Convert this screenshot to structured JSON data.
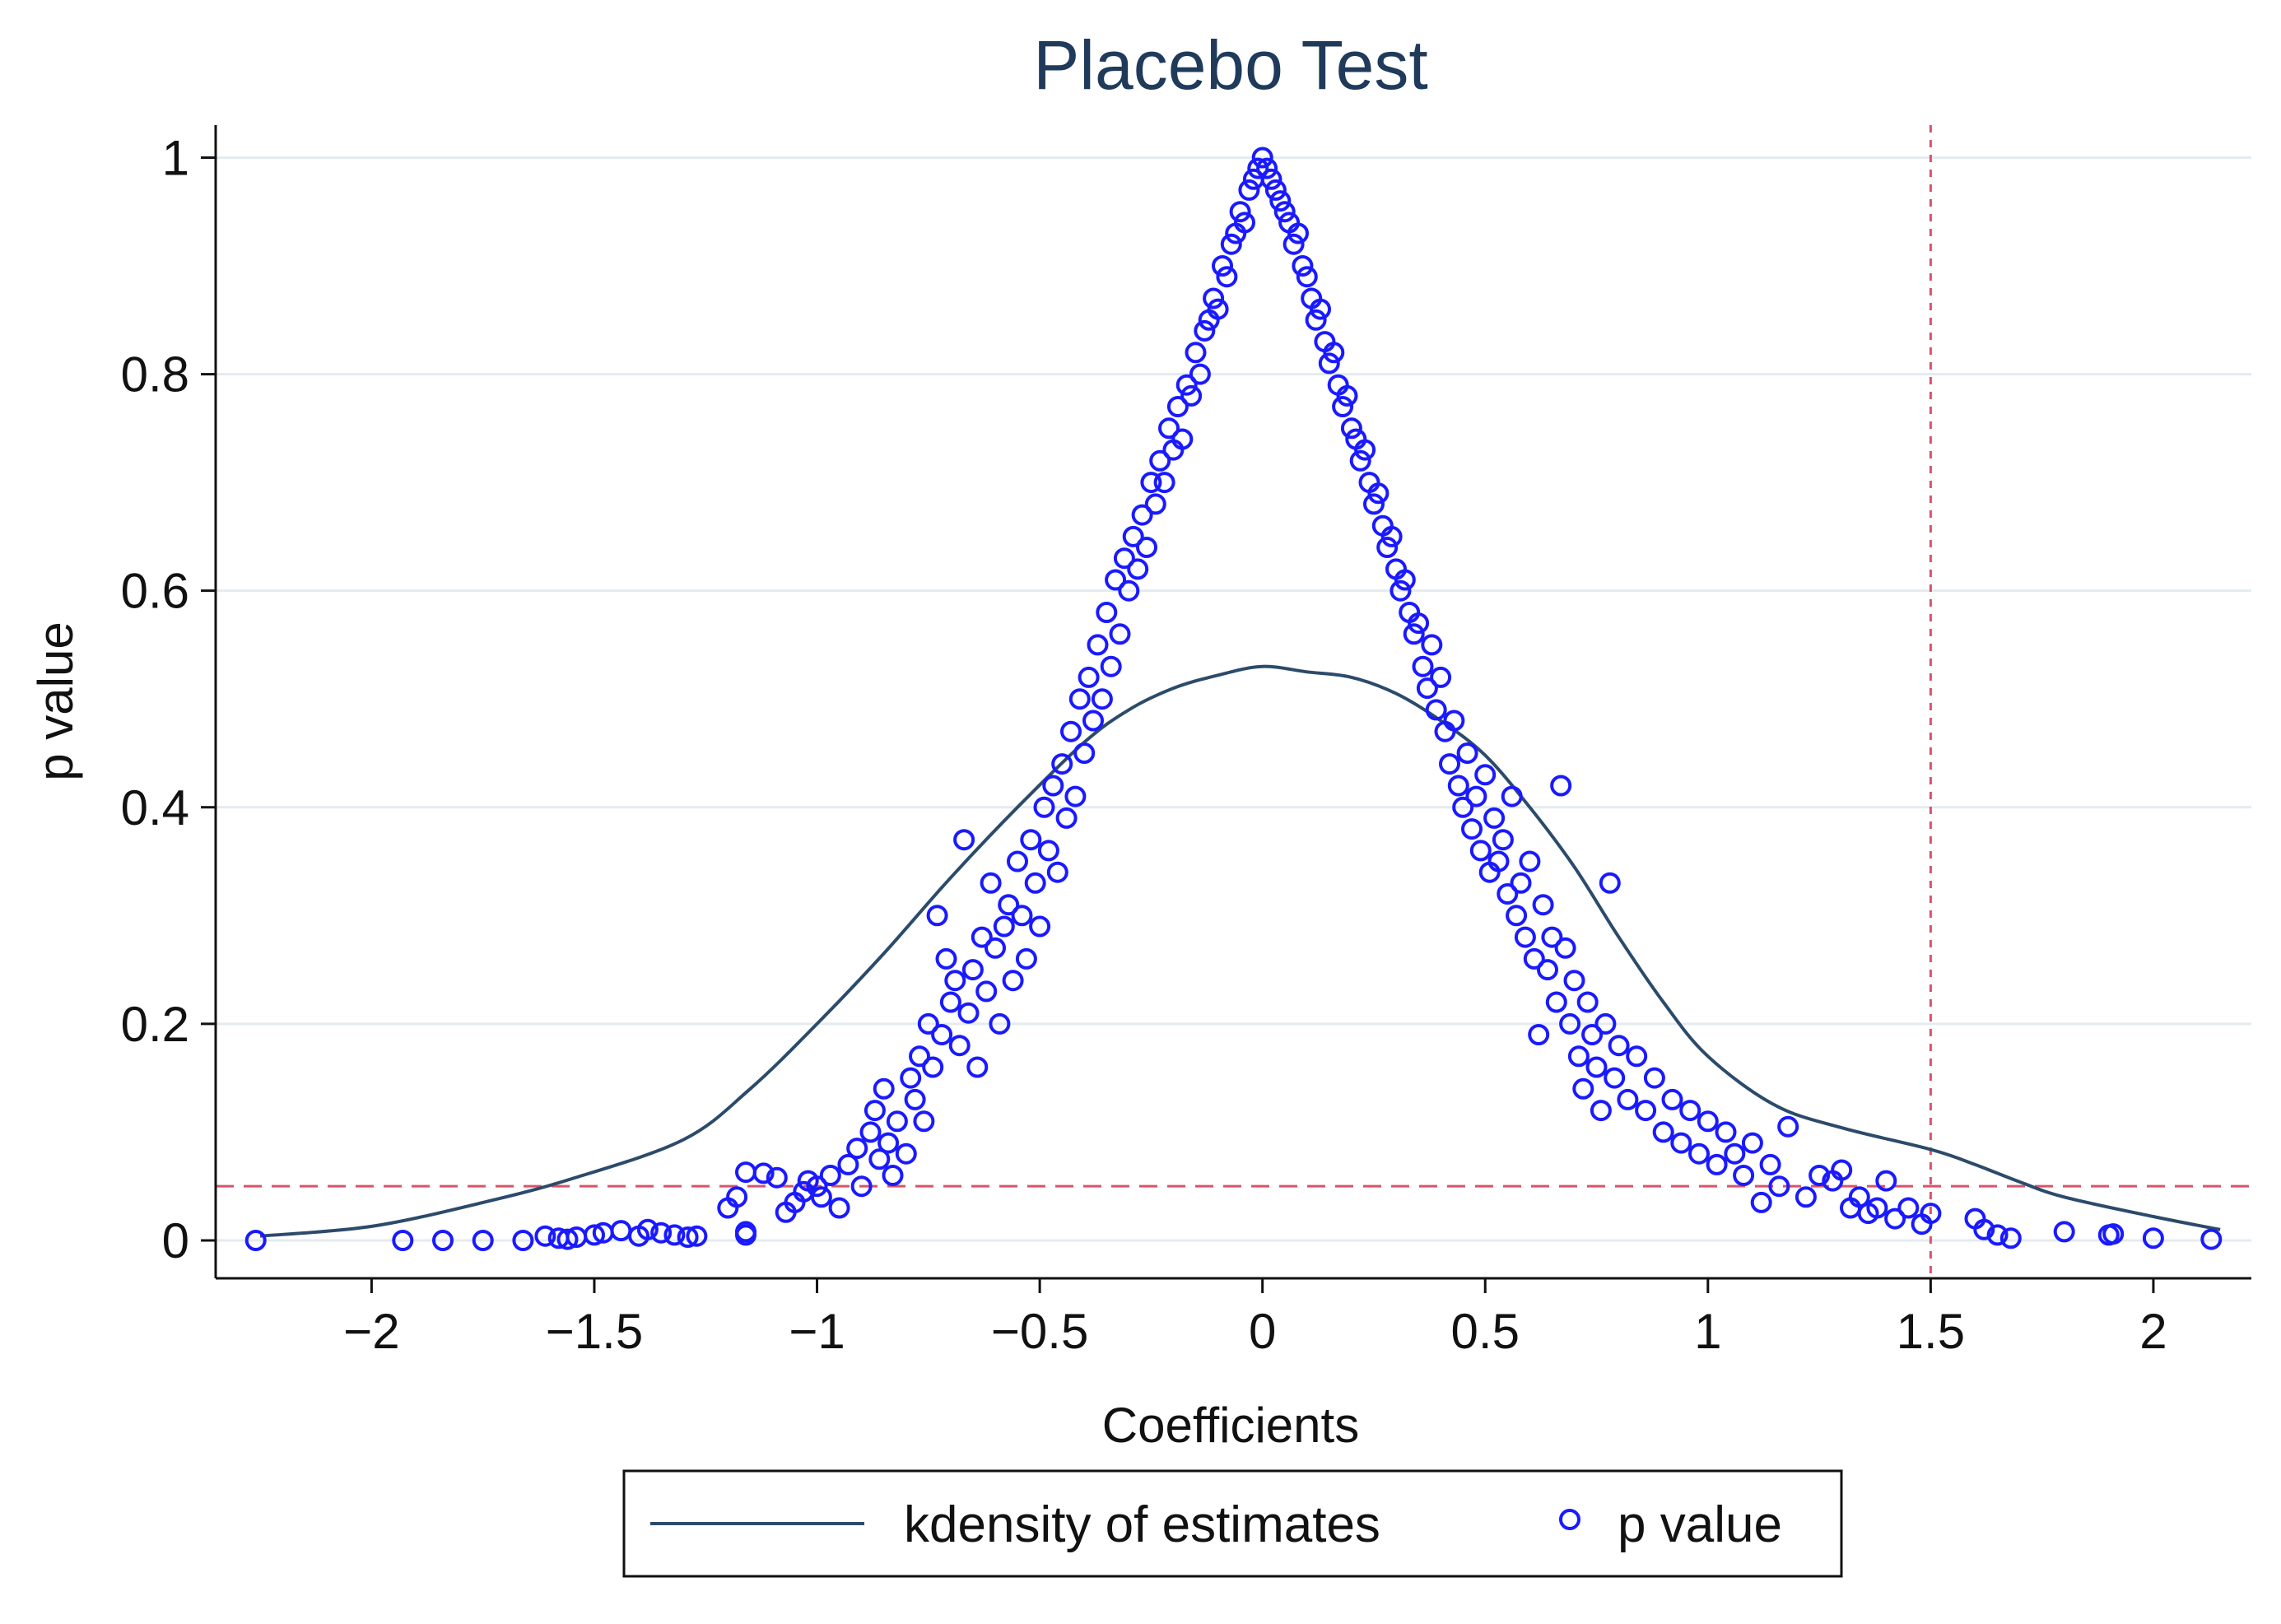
{
  "chart_data": {
    "type": "scatter",
    "title": "Placebo Test",
    "xlabel": "Coefficients",
    "ylabel": "p value",
    "xlim": [
      -2.35,
      2.22
    ],
    "ylim": [
      -0.035,
      1.03
    ],
    "x_ticks": [
      {
        "value": -2,
        "label": "−2"
      },
      {
        "value": -1.5,
        "label": "−1.5"
      },
      {
        "value": -1,
        "label": "−1"
      },
      {
        "value": -0.5,
        "label": "−0.5"
      },
      {
        "value": 0,
        "label": "0"
      },
      {
        "value": 0.5,
        "label": "0.5"
      },
      {
        "value": 1,
        "label": "1"
      },
      {
        "value": 1.5,
        "label": "1.5"
      },
      {
        "value": 2,
        "label": "2"
      }
    ],
    "y_ticks": [
      {
        "value": 0,
        "label": "0"
      },
      {
        "value": 0.2,
        "label": "0.2"
      },
      {
        "value": 0.4,
        "label": "0.4"
      },
      {
        "value": 0.6,
        "label": "0.6"
      },
      {
        "value": 0.8,
        "label": "0.8"
      },
      {
        "value": 1,
        "label": "1"
      }
    ],
    "grid": true,
    "reference_lines": [
      {
        "orientation": "horizontal",
        "value": 0.05,
        "color": "#d9536b"
      },
      {
        "orientation": "vertical",
        "value": 1.5,
        "color": "#d9536b"
      }
    ],
    "legend": {
      "placement": "bottom",
      "entries": [
        "kdensity of estimates",
        "p value"
      ]
    },
    "colors": {
      "title": "#1f3a5a",
      "kdensity_line": "#2c4b6b",
      "p_value_marker": "#1a1aff",
      "grid": "#e3ecf0",
      "reference": "#d9536b"
    },
    "series": [
      {
        "name": "kdensity of estimates",
        "kind": "line",
        "x": [
          -2.25,
          -2.0,
          -1.75,
          -1.55,
          -1.3,
          -1.15,
          -1.0,
          -0.85,
          -0.7,
          -0.55,
          -0.4,
          -0.3,
          -0.2,
          -0.1,
          0.0,
          0.1,
          0.2,
          0.3,
          0.4,
          0.5,
          0.6,
          0.7,
          0.8,
          0.9,
          1.0,
          1.15,
          1.3,
          1.5,
          1.6,
          1.7,
          1.8,
          2.0,
          2.15
        ],
        "y": [
          0.004,
          0.013,
          0.035,
          0.057,
          0.093,
          0.14,
          0.2,
          0.265,
          0.335,
          0.4,
          0.46,
          0.49,
          0.51,
          0.522,
          0.53,
          0.525,
          0.52,
          0.505,
          0.48,
          0.448,
          0.4,
          0.345,
          0.28,
          0.22,
          0.17,
          0.125,
          0.104,
          0.084,
          0.07,
          0.054,
          0.04,
          0.022,
          0.01
        ]
      },
      {
        "name": "p value",
        "kind": "scatter",
        "points": [
          [
            -2.26,
            0.0
          ],
          [
            -1.93,
            0.0
          ],
          [
            -1.84,
            0.0
          ],
          [
            -1.75,
            0.0
          ],
          [
            -1.66,
            0.0
          ],
          [
            -1.61,
            0.004
          ],
          [
            -1.58,
            0.002
          ],
          [
            -1.56,
            0.001
          ],
          [
            -1.54,
            0.003
          ],
          [
            -1.5,
            0.005
          ],
          [
            -1.48,
            0.007
          ],
          [
            -1.44,
            0.009
          ],
          [
            -1.4,
            0.004
          ],
          [
            -1.38,
            0.01
          ],
          [
            -1.35,
            0.007
          ],
          [
            -1.32,
            0.005
          ],
          [
            -1.29,
            0.003
          ],
          [
            -1.27,
            0.004
          ],
          [
            -1.16,
            0.005
          ],
          [
            -1.16,
            0.008
          ],
          [
            -1.16,
            0.063
          ],
          [
            -1.2,
            0.03
          ],
          [
            -1.18,
            0.04
          ],
          [
            -1.12,
            0.062
          ],
          [
            -1.09,
            0.058
          ],
          [
            -1.07,
            0.026
          ],
          [
            -1.05,
            0.035
          ],
          [
            -1.03,
            0.045
          ],
          [
            -1.02,
            0.055
          ],
          [
            -1.0,
            0.05
          ],
          [
            -0.99,
            0.04
          ],
          [
            -0.97,
            0.06
          ],
          [
            -0.95,
            0.03
          ],
          [
            -0.93,
            0.07
          ],
          [
            -0.91,
            0.085
          ],
          [
            -0.9,
            0.05
          ],
          [
            -0.88,
            0.1
          ],
          [
            -0.87,
            0.12
          ],
          [
            -0.86,
            0.075
          ],
          [
            -0.85,
            0.14
          ],
          [
            -0.84,
            0.09
          ],
          [
            -0.83,
            0.06
          ],
          [
            -0.82,
            0.11
          ],
          [
            -0.8,
            0.08
          ],
          [
            -0.79,
            0.15
          ],
          [
            -0.78,
            0.13
          ],
          [
            -0.77,
            0.17
          ],
          [
            -0.76,
            0.11
          ],
          [
            -0.75,
            0.2
          ],
          [
            -0.74,
            0.16
          ],
          [
            -0.73,
            0.3
          ],
          [
            -0.72,
            0.19
          ],
          [
            -0.71,
            0.26
          ],
          [
            -0.7,
            0.22
          ],
          [
            -0.69,
            0.24
          ],
          [
            -0.68,
            0.18
          ],
          [
            -0.67,
            0.37
          ],
          [
            -0.66,
            0.21
          ],
          [
            -0.65,
            0.25
          ],
          [
            -0.64,
            0.16
          ],
          [
            -0.63,
            0.28
          ],
          [
            -0.62,
            0.23
          ],
          [
            -0.61,
            0.33
          ],
          [
            -0.6,
            0.27
          ],
          [
            -0.59,
            0.2
          ],
          [
            -0.58,
            0.29
          ],
          [
            -0.57,
            0.31
          ],
          [
            -0.56,
            0.24
          ],
          [
            -0.55,
            0.35
          ],
          [
            -0.54,
            0.3
          ],
          [
            -0.53,
            0.26
          ],
          [
            -0.52,
            0.37
          ],
          [
            -0.51,
            0.33
          ],
          [
            -0.5,
            0.29
          ],
          [
            -0.49,
            0.4
          ],
          [
            -0.48,
            0.36
          ],
          [
            -0.47,
            0.42
          ],
          [
            -0.46,
            0.34
          ],
          [
            -0.45,
            0.44
          ],
          [
            -0.44,
            0.39
          ],
          [
            -0.43,
            0.47
          ],
          [
            -0.42,
            0.41
          ],
          [
            -0.41,
            0.5
          ],
          [
            -0.4,
            0.45
          ],
          [
            -0.39,
            0.52
          ],
          [
            -0.38,
            0.48
          ],
          [
            -0.37,
            0.55
          ],
          [
            -0.36,
            0.5
          ],
          [
            -0.35,
            0.58
          ],
          [
            -0.34,
            0.53
          ],
          [
            -0.33,
            0.61
          ],
          [
            -0.32,
            0.56
          ],
          [
            -0.31,
            0.63
          ],
          [
            -0.3,
            0.6
          ],
          [
            -0.29,
            0.65
          ],
          [
            -0.28,
            0.62
          ],
          [
            -0.27,
            0.67
          ],
          [
            -0.26,
            0.64
          ],
          [
            -0.25,
            0.7
          ],
          [
            -0.24,
            0.68
          ],
          [
            -0.23,
            0.72
          ],
          [
            -0.22,
            0.7
          ],
          [
            -0.21,
            0.75
          ],
          [
            -0.2,
            0.73
          ],
          [
            -0.19,
            0.77
          ],
          [
            -0.18,
            0.74
          ],
          [
            -0.17,
            0.79
          ],
          [
            -0.16,
            0.78
          ],
          [
            -0.15,
            0.82
          ],
          [
            -0.14,
            0.8
          ],
          [
            -0.13,
            0.84
          ],
          [
            -0.12,
            0.85
          ],
          [
            -0.11,
            0.87
          ],
          [
            -0.1,
            0.86
          ],
          [
            -0.09,
            0.9
          ],
          [
            -0.08,
            0.89
          ],
          [
            -0.07,
            0.92
          ],
          [
            -0.06,
            0.93
          ],
          [
            -0.05,
            0.95
          ],
          [
            -0.04,
            0.94
          ],
          [
            -0.03,
            0.97
          ],
          [
            -0.02,
            0.98
          ],
          [
            -0.01,
            0.99
          ],
          [
            0.0,
            1.0
          ],
          [
            0.01,
            0.99
          ],
          [
            0.02,
            0.98
          ],
          [
            0.03,
            0.97
          ],
          [
            0.04,
            0.96
          ],
          [
            0.05,
            0.95
          ],
          [
            0.06,
            0.94
          ],
          [
            0.07,
            0.92
          ],
          [
            0.08,
            0.93
          ],
          [
            0.09,
            0.9
          ],
          [
            0.1,
            0.89
          ],
          [
            0.11,
            0.87
          ],
          [
            0.12,
            0.85
          ],
          [
            0.13,
            0.86
          ],
          [
            0.14,
            0.83
          ],
          [
            0.15,
            0.81
          ],
          [
            0.16,
            0.82
          ],
          [
            0.17,
            0.79
          ],
          [
            0.18,
            0.77
          ],
          [
            0.19,
            0.78
          ],
          [
            0.2,
            0.75
          ],
          [
            0.21,
            0.74
          ],
          [
            0.22,
            0.72
          ],
          [
            0.23,
            0.73
          ],
          [
            0.24,
            0.7
          ],
          [
            0.25,
            0.68
          ],
          [
            0.26,
            0.69
          ],
          [
            0.27,
            0.66
          ],
          [
            0.28,
            0.64
          ],
          [
            0.29,
            0.65
          ],
          [
            0.3,
            0.62
          ],
          [
            0.31,
            0.6
          ],
          [
            0.32,
            0.61
          ],
          [
            0.33,
            0.58
          ],
          [
            0.34,
            0.56
          ],
          [
            0.35,
            0.57
          ],
          [
            0.36,
            0.53
          ],
          [
            0.37,
            0.51
          ],
          [
            0.38,
            0.55
          ],
          [
            0.39,
            0.49
          ],
          [
            0.4,
            0.52
          ],
          [
            0.41,
            0.47
          ],
          [
            0.42,
            0.44
          ],
          [
            0.43,
            0.48
          ],
          [
            0.44,
            0.42
          ],
          [
            0.45,
            0.4
          ],
          [
            0.46,
            0.45
          ],
          [
            0.47,
            0.38
          ],
          [
            0.48,
            0.41
          ],
          [
            0.49,
            0.36
          ],
          [
            0.5,
            0.43
          ],
          [
            0.51,
            0.34
          ],
          [
            0.52,
            0.39
          ],
          [
            0.53,
            0.35
          ],
          [
            0.54,
            0.37
          ],
          [
            0.55,
            0.32
          ],
          [
            0.56,
            0.41
          ],
          [
            0.57,
            0.3
          ],
          [
            0.58,
            0.33
          ],
          [
            0.59,
            0.28
          ],
          [
            0.6,
            0.35
          ],
          [
            0.61,
            0.26
          ],
          [
            0.62,
            0.19
          ],
          [
            0.63,
            0.31
          ],
          [
            0.64,
            0.25
          ],
          [
            0.65,
            0.28
          ],
          [
            0.66,
            0.22
          ],
          [
            0.67,
            0.42
          ],
          [
            0.68,
            0.27
          ],
          [
            0.69,
            0.2
          ],
          [
            0.7,
            0.24
          ],
          [
            0.71,
            0.17
          ],
          [
            0.72,
            0.14
          ],
          [
            0.73,
            0.22
          ],
          [
            0.74,
            0.19
          ],
          [
            0.75,
            0.16
          ],
          [
            0.76,
            0.12
          ],
          [
            0.77,
            0.2
          ],
          [
            0.78,
            0.33
          ],
          [
            0.79,
            0.15
          ],
          [
            0.8,
            0.18
          ],
          [
            0.82,
            0.13
          ],
          [
            0.84,
            0.17
          ],
          [
            0.86,
            0.12
          ],
          [
            0.88,
            0.15
          ],
          [
            0.9,
            0.1
          ],
          [
            0.92,
            0.13
          ],
          [
            0.94,
            0.09
          ],
          [
            0.96,
            0.12
          ],
          [
            0.98,
            0.08
          ],
          [
            1.0,
            0.11
          ],
          [
            1.02,
            0.07
          ],
          [
            1.04,
            0.1
          ],
          [
            1.06,
            0.08
          ],
          [
            1.08,
            0.06
          ],
          [
            1.1,
            0.09
          ],
          [
            1.12,
            0.035
          ],
          [
            1.14,
            0.07
          ],
          [
            1.16,
            0.05
          ],
          [
            1.18,
            0.105
          ],
          [
            1.22,
            0.04
          ],
          [
            1.25,
            0.06
          ],
          [
            1.28,
            0.055
          ],
          [
            1.3,
            0.065
          ],
          [
            1.32,
            0.03
          ],
          [
            1.34,
            0.04
          ],
          [
            1.36,
            0.025
          ],
          [
            1.38,
            0.03
          ],
          [
            1.4,
            0.055
          ],
          [
            1.42,
            0.02
          ],
          [
            1.45,
            0.03
          ],
          [
            1.48,
            0.015
          ],
          [
            1.5,
            0.025
          ],
          [
            1.6,
            0.02
          ],
          [
            1.62,
            0.01
          ],
          [
            1.65,
            0.005
          ],
          [
            1.68,
            0.002
          ],
          [
            1.8,
            0.008
          ],
          [
            1.9,
            0.005
          ],
          [
            1.91,
            0.006
          ],
          [
            2.0,
            0.002
          ],
          [
            2.13,
            0.001
          ]
        ]
      }
    ]
  }
}
